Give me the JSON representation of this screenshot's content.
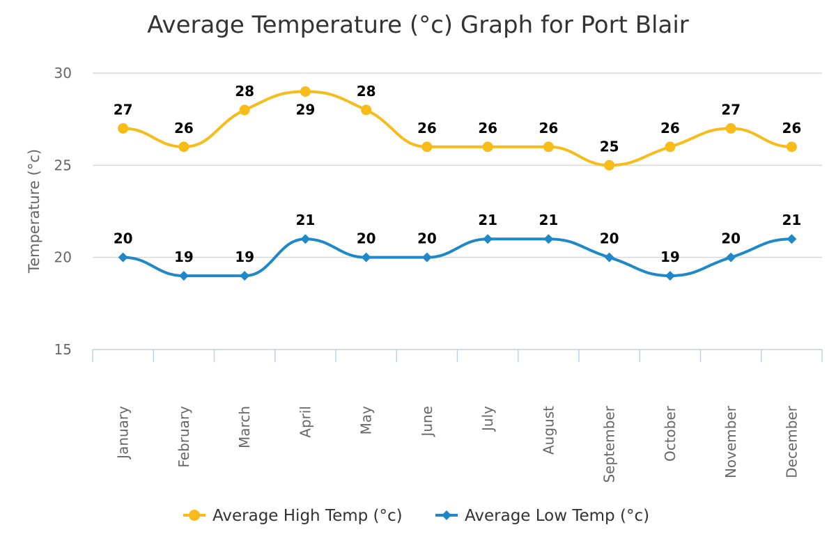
{
  "chart_data": {
    "type": "line",
    "title": "Average Temperature (°c) Graph for Port Blair",
    "xlabel": "",
    "ylabel": "Temperature (°c)",
    "ylim": [
      15,
      30
    ],
    "yticks": [
      15,
      20,
      25,
      30
    ],
    "grid": true,
    "legend_position": "bottom",
    "smooth": true,
    "categories": [
      "January",
      "February",
      "March",
      "April",
      "May",
      "June",
      "July",
      "August",
      "September",
      "October",
      "November",
      "December"
    ],
    "series": [
      {
        "name": "Average High Temp (°c)",
        "color": "#f8bc1a",
        "marker": "circle",
        "values": [
          27,
          26,
          28,
          29,
          28,
          26,
          26,
          26,
          25,
          26,
          27,
          26
        ],
        "label_position": [
          "above",
          "above",
          "above",
          "below",
          "above",
          "above",
          "above",
          "above",
          "above",
          "above",
          "above",
          "above"
        ]
      },
      {
        "name": "Average Low Temp (°c)",
        "color": "#1e88c8",
        "marker": "diamond",
        "values": [
          20,
          19,
          19,
          21,
          20,
          20,
          21,
          21,
          20,
          19,
          20,
          21
        ],
        "label_position": [
          "above",
          "above",
          "above",
          "above",
          "above",
          "above",
          "above",
          "above",
          "above",
          "above",
          "above",
          "above"
        ]
      }
    ]
  }
}
